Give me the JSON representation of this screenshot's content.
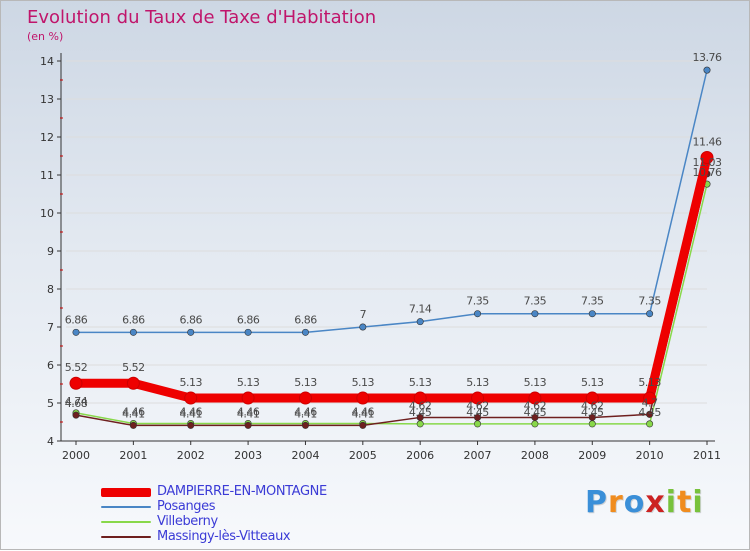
{
  "colors": {
    "title": "#c0156b",
    "legend_text": "#3b3bd6",
    "axis": "#333333",
    "tick_red": "#cc0000",
    "grid": "#dddddd"
  },
  "chart_data": {
    "type": "line",
    "title": "Evolution du Taux de Taxe d'Habitation",
    "subtitle": "(en %)",
    "xlabel": "",
    "ylabel": "",
    "categories": [
      "2000",
      "2001",
      "2002",
      "2003",
      "2004",
      "2005",
      "2006",
      "2007",
      "2008",
      "2009",
      "2010",
      "2011"
    ],
    "ylim": [
      4,
      14
    ],
    "yticks": [
      4,
      5,
      6,
      7,
      8,
      9,
      10,
      11,
      12,
      13,
      14
    ],
    "grid": true,
    "legend_position": "bottom-left",
    "series": [
      {
        "name": "DAMPIERRE-EN-MONTAGNE",
        "color": "#ee0000",
        "width": 9,
        "values": [
          5.52,
          5.52,
          5.13,
          5.13,
          5.13,
          5.13,
          5.13,
          5.13,
          5.13,
          5.13,
          5.13,
          11.46
        ],
        "labels": [
          "5.52",
          "5.52",
          "5.13",
          "5.13",
          "5.13",
          "5.13",
          "5.13",
          "5.13",
          "5.13",
          "5.13",
          "5.13",
          "11.46"
        ]
      },
      {
        "name": "Posanges",
        "color": "#4a86c5",
        "width": 1.5,
        "values": [
          6.86,
          6.86,
          6.86,
          6.86,
          6.86,
          7.0,
          7.14,
          7.35,
          7.35,
          7.35,
          7.35,
          13.76
        ],
        "labels": [
          "6.86",
          "6.86",
          "6.86",
          "6.86",
          "6.86",
          "7",
          "7.14",
          "7.35",
          "7.35",
          "7.35",
          "7.35",
          "13.76"
        ]
      },
      {
        "name": "Villeberny",
        "color": "#88d84a",
        "width": 1.5,
        "values": [
          4.74,
          4.46,
          4.46,
          4.46,
          4.46,
          4.46,
          4.45,
          4.45,
          4.45,
          4.45,
          4.45,
          10.76
        ],
        "labels": [
          "4.74",
          "4.46",
          "4.46",
          "4.46",
          "4.46",
          "4.46",
          "4.45",
          "4.45",
          "4.45",
          "4.45",
          "4.45",
          "10.76"
        ]
      },
      {
        "name": "Massingy-lès-Vitteaux",
        "color": "#6e1f1f",
        "width": 1.5,
        "values": [
          4.68,
          4.41,
          4.41,
          4.41,
          4.41,
          4.41,
          4.62,
          4.62,
          4.62,
          4.62,
          4.7,
          11.03
        ],
        "labels": [
          "4.68",
          "4.41",
          "4.41",
          "4.41",
          "4.41",
          "4.41",
          "4.62",
          "4.62",
          "4.62",
          "4.62",
          "4.7",
          "11.03"
        ]
      }
    ]
  },
  "logo": {
    "letters": [
      "P",
      "r",
      "o",
      "x",
      "i",
      "t",
      "i"
    ],
    "colors": [
      "#3a8fd8",
      "#f08c1e",
      "#3a8fd8",
      "#cc2222",
      "#78c23c",
      "#f08c1e",
      "#78c23c"
    ]
  }
}
